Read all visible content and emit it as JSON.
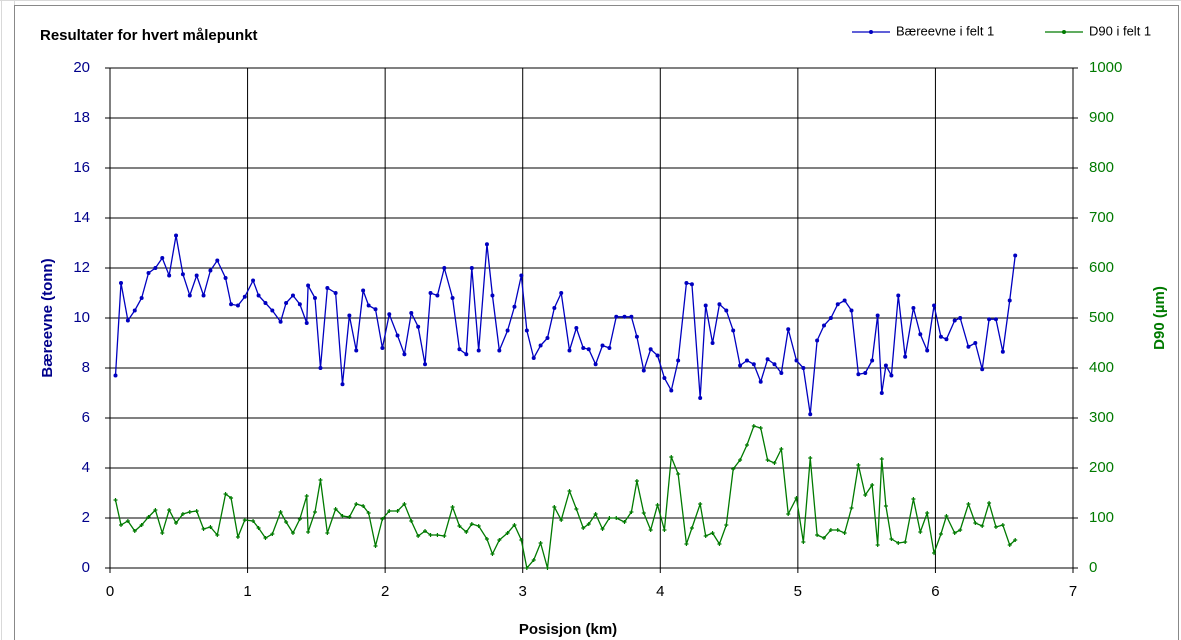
{
  "chart_data": {
    "type": "line",
    "title": "Resultater for hvert målepunkt",
    "x_label": "Posisjon (km)",
    "y_label": "Bæreevne (tonn)",
    "y2_label": "D90 (µm)",
    "xlim": [
      0,
      7
    ],
    "xticks": [
      0,
      1,
      2,
      3,
      4,
      5,
      6,
      7
    ],
    "ylim": [
      0,
      20
    ],
    "yticks": [
      0,
      2,
      4,
      6,
      8,
      10,
      12,
      14,
      16,
      18,
      20
    ],
    "y2lim": [
      0,
      1000
    ],
    "y2ticks": [
      0,
      100,
      200,
      300,
      400,
      500,
      600,
      700,
      800,
      900,
      1000
    ],
    "grid": true,
    "legend": "top-right",
    "x": [
      0.04,
      0.08,
      0.13,
      0.18,
      0.23,
      0.28,
      0.33,
      0.38,
      0.43,
      0.48,
      0.53,
      0.58,
      0.63,
      0.68,
      0.73,
      0.78,
      0.84,
      0.88,
      0.93,
      0.98,
      1.04,
      1.08,
      1.13,
      1.18,
      1.24,
      1.28,
      1.33,
      1.38,
      1.43,
      1.44,
      1.49,
      1.53,
      1.58,
      1.64,
      1.69,
      1.74,
      1.79,
      1.84,
      1.88,
      1.93,
      1.98,
      2.03,
      2.09,
      2.14,
      2.19,
      2.24,
      2.29,
      2.33,
      2.38,
      2.43,
      2.49,
      2.54,
      2.59,
      2.63,
      2.68,
      2.74,
      2.78,
      2.83,
      2.89,
      2.94,
      2.99,
      3.03,
      3.08,
      3.13,
      3.18,
      3.23,
      3.28,
      3.34,
      3.39,
      3.44,
      3.48,
      3.53,
      3.58,
      3.63,
      3.68,
      3.74,
      3.79,
      3.83,
      3.88,
      3.93,
      3.98,
      4.03,
      4.08,
      4.13,
      4.19,
      4.23,
      4.29,
      4.33,
      4.38,
      4.43,
      4.48,
      4.53,
      4.58,
      4.63,
      4.68,
      4.73,
      4.78,
      4.83,
      4.88,
      4.93,
      4.99,
      5.04,
      5.09,
      5.14,
      5.19,
      5.24,
      5.29,
      5.34,
      5.39,
      5.44,
      5.49,
      5.54,
      5.58,
      5.61,
      5.64,
      5.68,
      5.73,
      5.78,
      5.84,
      5.89,
      5.94,
      5.99,
      6.04,
      6.08,
      6.14,
      6.18,
      6.24,
      6.29,
      6.34,
      6.39,
      6.44,
      6.49,
      6.54,
      6.58
    ],
    "series": [
      {
        "name": "Bæreevne i felt 1",
        "color": "#0000c0",
        "values": [
          7.7,
          11.4,
          9.9,
          10.3,
          10.8,
          11.8,
          12.0,
          12.4,
          11.7,
          13.3,
          11.75,
          10.9,
          11.7,
          10.9,
          11.9,
          12.3,
          11.6,
          10.55,
          10.5,
          10.85,
          11.5,
          10.9,
          10.6,
          10.3,
          9.85,
          10.6,
          10.9,
          10.55,
          9.8,
          11.3,
          10.8,
          8.0,
          11.2,
          11.0,
          7.35,
          10.1,
          8.7,
          11.1,
          10.5,
          10.35,
          8.8,
          10.15,
          9.3,
          8.55,
          10.2,
          9.65,
          8.15,
          11.0,
          10.9,
          12.0,
          10.8,
          8.75,
          8.55,
          12.0,
          8.7,
          12.95,
          10.9,
          8.7,
          9.5,
          10.45,
          11.7,
          9.5,
          8.4,
          8.9,
          9.2,
          10.4,
          11.0,
          8.7,
          9.6,
          8.8,
          8.75,
          8.15,
          8.9,
          8.8,
          10.05,
          10.05,
          10.05,
          9.25,
          7.9,
          8.75,
          8.5,
          7.6,
          7.1,
          8.3,
          11.4,
          11.35,
          6.8,
          10.5,
          9.0,
          10.55,
          10.3,
          9.5,
          8.1,
          8.3,
          8.15,
          7.45,
          8.35,
          8.15,
          7.8,
          9.55,
          8.3,
          8.0,
          6.15,
          9.1,
          9.7,
          10.0,
          10.55,
          10.7,
          10.3,
          7.75,
          7.8,
          8.3,
          10.1,
          7.0,
          8.1,
          7.7,
          10.9,
          8.45,
          10.4,
          9.35,
          8.7,
          10.5,
          9.25,
          9.15,
          9.9,
          10.0,
          8.85,
          9.0,
          7.95,
          9.95,
          9.95,
          8.65,
          10.7,
          12.5
        ]
      },
      {
        "name": "D90 i felt 1",
        "color": "#007a00",
        "axis": "y2",
        "values": [
          136,
          86,
          94,
          74,
          86,
          102,
          116,
          70,
          116,
          90,
          108,
          112,
          114,
          78,
          82,
          66,
          148,
          140,
          62,
          96,
          94,
          80,
          60,
          68,
          112,
          92,
          70,
          98,
          144,
          72,
          112,
          176,
          70,
          118,
          104,
          102,
          128,
          124,
          110,
          44,
          98,
          114,
          114,
          128,
          94,
          64,
          74,
          66,
          66,
          64,
          122,
          84,
          72,
          88,
          84,
          58,
          28,
          56,
          70,
          86,
          56,
          0,
          16,
          50,
          0,
          122,
          96,
          154,
          118,
          80,
          88,
          108,
          78,
          100,
          100,
          92,
          112,
          174,
          110,
          76,
          126,
          76,
          222,
          188,
          48,
          80,
          128,
          64,
          70,
          48,
          86,
          198,
          216,
          246,
          284,
          280,
          216,
          210,
          238,
          108,
          140,
          52,
          220,
          66,
          60,
          76,
          76,
          70,
          120,
          206,
          146,
          166,
          46,
          218,
          124,
          58,
          50,
          52,
          138,
          72,
          110,
          30,
          68,
          104,
          70,
          76,
          128,
          90,
          84,
          130,
          82,
          86,
          46,
          56
        ]
      }
    ]
  }
}
